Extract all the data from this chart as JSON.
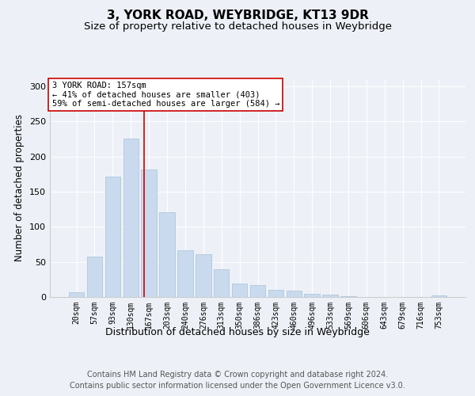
{
  "title1": "3, YORK ROAD, WEYBRIDGE, KT13 9DR",
  "title2": "Size of property relative to detached houses in Weybridge",
  "xlabel": "Distribution of detached houses by size in Weybridge",
  "ylabel": "Number of detached properties",
  "bar_labels": [
    "20sqm",
    "57sqm",
    "93sqm",
    "130sqm",
    "167sqm",
    "203sqm",
    "240sqm",
    "276sqm",
    "313sqm",
    "350sqm",
    "386sqm",
    "423sqm",
    "460sqm",
    "496sqm",
    "533sqm",
    "569sqm",
    "606sqm",
    "643sqm",
    "679sqm",
    "716sqm",
    "753sqm"
  ],
  "bar_values": [
    7,
    57,
    171,
    226,
    181,
    121,
    67,
    61,
    40,
    19,
    17,
    10,
    9,
    4,
    3,
    1,
    0,
    0,
    0,
    0,
    2
  ],
  "bar_color": "#c9daee",
  "bar_edge_color": "#a8c0d8",
  "annotation_text1": "3 YORK ROAD: 157sqm",
  "annotation_text2": "← 41% of detached houses are smaller (403)",
  "annotation_text3": "59% of semi-detached houses are larger (584) →",
  "annotation_line_color": "#cc0000",
  "ylim": [
    0,
    310
  ],
  "yticks": [
    0,
    50,
    100,
    150,
    200,
    250,
    300
  ],
  "bg_color": "#edf1f7",
  "footer1": "Contains HM Land Registry data © Crown copyright and database right 2024.",
  "footer2": "Contains public sector information licensed under the Open Government Licence v3.0."
}
